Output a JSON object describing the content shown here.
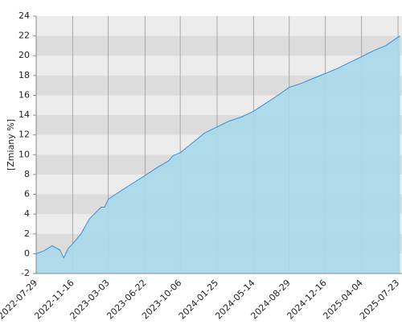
{
  "chart_data": {
    "type": "area",
    "y_label": "[Zmiany %]",
    "x": [
      "2022-07-29",
      "2022-08-22",
      "2022-09-15",
      "2022-10-08",
      "2022-10-20",
      "2022-11-02",
      "2022-11-16",
      "2022-12-11",
      "2023-01-05",
      "2023-02-10",
      "2023-02-20",
      "2023-03-03",
      "2023-04-08",
      "2023-05-15",
      "2023-06-22",
      "2023-07-28",
      "2023-09-02",
      "2023-09-14",
      "2023-10-06",
      "2023-11-12",
      "2023-12-19",
      "2024-01-25",
      "2024-03-01",
      "2024-04-07",
      "2024-05-14",
      "2024-06-20",
      "2024-07-26",
      "2024-08-29",
      "2024-10-04",
      "2024-11-09",
      "2024-12-16",
      "2025-01-21",
      "2025-02-26",
      "2025-04-04",
      "2025-05-10",
      "2025-06-15",
      "2025-07-29"
    ],
    "series": [
      {
        "color": "#3a8fd8",
        "fill": "#a9d8ea",
        "values": [
          0.0,
          0.3,
          0.8,
          0.4,
          -0.4,
          0.5,
          1.0,
          2.0,
          3.5,
          4.7,
          4.7,
          5.5,
          6.3,
          7.1,
          7.9,
          8.7,
          9.4,
          9.9,
          10.2,
          11.2,
          12.2,
          12.8,
          13.4,
          13.8,
          14.4,
          15.2,
          16.0,
          16.8,
          17.2,
          17.7,
          18.2,
          18.7,
          19.3,
          19.9,
          20.5,
          21.0,
          22.0
        ]
      }
    ],
    "xlim": [
      "2022-07-29",
      "2025-08-04"
    ],
    "xticks": [
      "2022-07-29",
      "2022-11-16",
      "2023-03-03",
      "2023-06-22",
      "2023-10-06",
      "2024-01-25",
      "2024-05-14",
      "2024-08-29",
      "2024-12-16",
      "2025-04-04",
      "2025-07-23"
    ],
    "ylim": [
      -2,
      24
    ],
    "yticks": [
      -2,
      0,
      2,
      4,
      6,
      8,
      10,
      12,
      14,
      16,
      18,
      20,
      22,
      24
    ],
    "grid": true
  }
}
